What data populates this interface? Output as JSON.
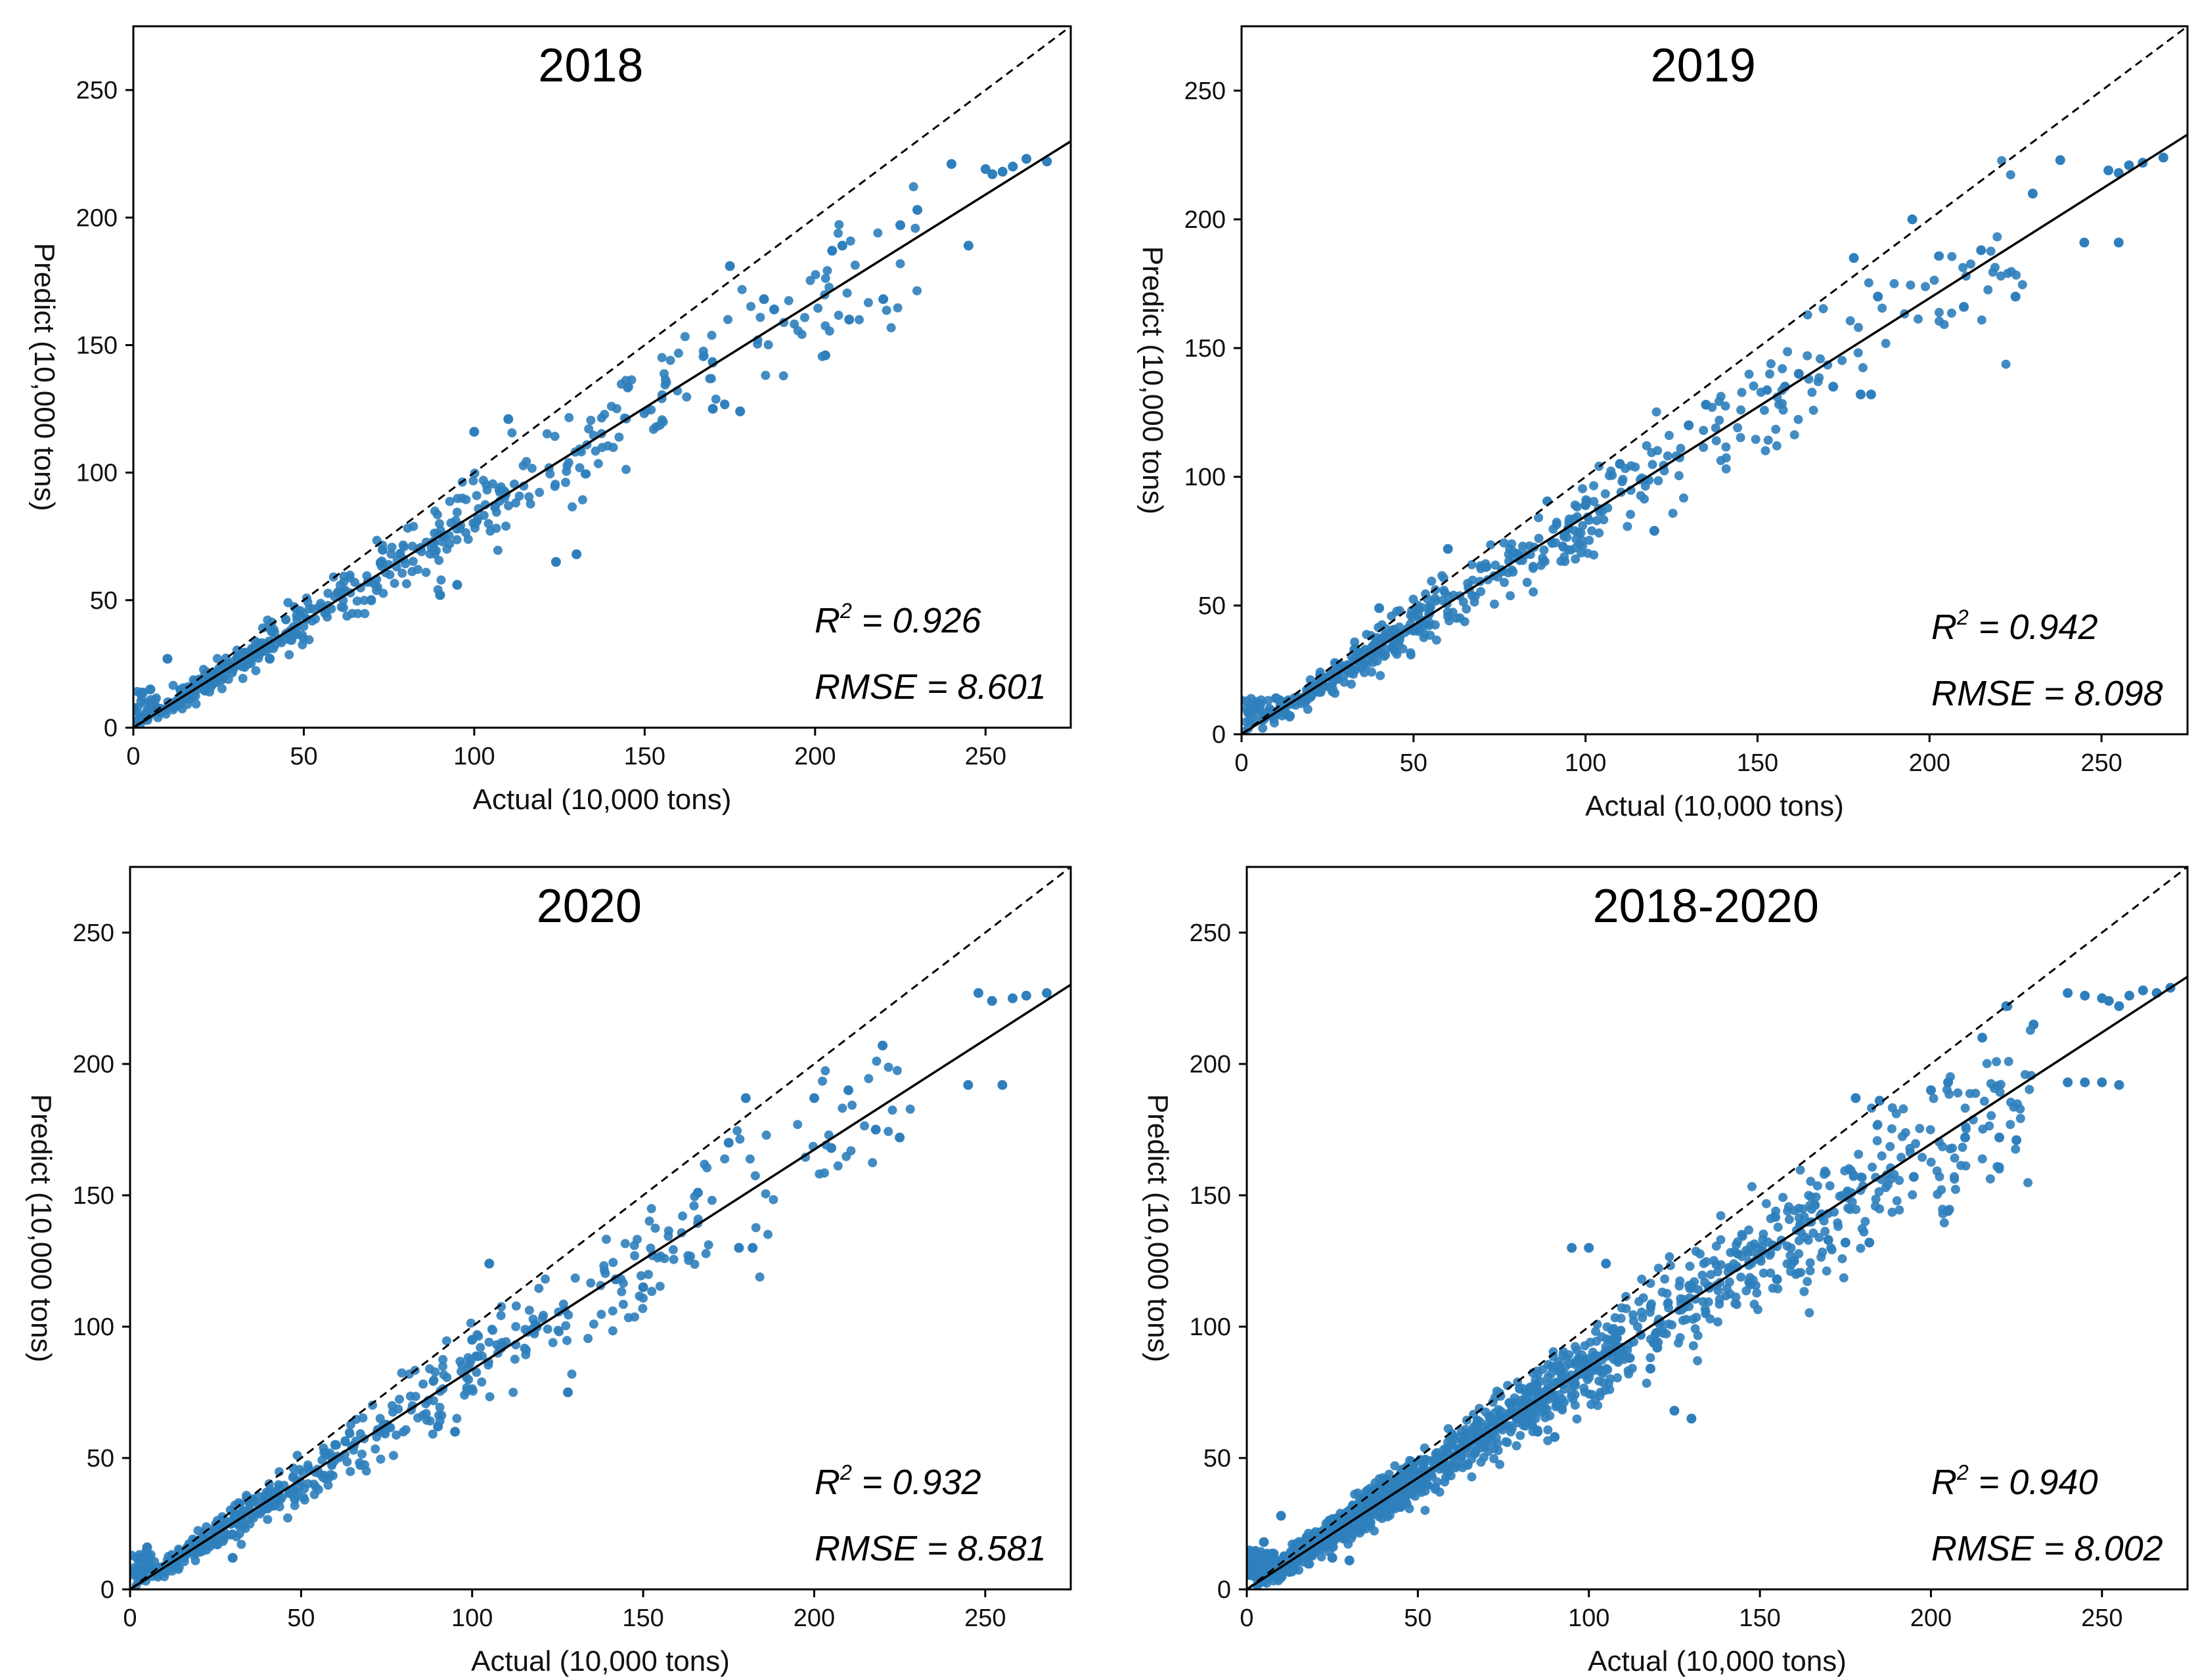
{
  "chart_data": [
    {
      "type": "scatter",
      "title": "2018",
      "xlabel": "Actual (10,000 tons)",
      "ylabel": "Predict (10,000 tons)",
      "xlim": [
        0,
        275
      ],
      "ylim": [
        0,
        275
      ],
      "xticks": [
        "0",
        "50",
        "100",
        "150",
        "200",
        "250"
      ],
      "yticks": [
        "0",
        "50",
        "100",
        "150",
        "200",
        "250"
      ],
      "r2_label": "R",
      "r2_sup": "2",
      "r2_text": " = 0.926",
      "rmse_text": "RMSE = 8.601",
      "fit_line": {
        "intercept": 0,
        "slope": 0.836
      },
      "identity_line": {
        "intercept": 0,
        "slope": 1
      },
      "n_points": 520,
      "seed": 11,
      "highlight_points": [
        [
          240,
          221
        ],
        [
          245,
          189
        ],
        [
          250,
          219
        ],
        [
          252,
          217
        ],
        [
          255,
          218
        ],
        [
          258,
          220
        ],
        [
          262,
          223
        ],
        [
          268,
          222
        ],
        [
          230,
          203
        ],
        [
          225,
          197
        ],
        [
          208,
          189
        ],
        [
          205,
          187
        ],
        [
          220,
          168
        ],
        [
          210,
          160
        ],
        [
          185,
          168
        ],
        [
          188,
          164
        ],
        [
          175,
          181
        ],
        [
          203,
          146
        ],
        [
          124,
          65
        ],
        [
          130,
          68
        ],
        [
          90,
          52
        ],
        [
          95,
          56
        ],
        [
          170,
          125
        ],
        [
          178,
          124
        ],
        [
          100,
          116
        ],
        [
          110,
          121
        ],
        [
          60,
          53
        ],
        [
          40,
          27
        ],
        [
          10,
          27
        ],
        [
          5,
          15
        ]
      ]
    },
    {
      "type": "scatter",
      "title": "2019",
      "xlabel": "Actual (10,000 tons)",
      "ylabel": "Predict (10,000 tons)",
      "xlim": [
        0,
        275
      ],
      "ylim": [
        0,
        275
      ],
      "xticks": [
        "0",
        "50",
        "100",
        "150",
        "200",
        "250"
      ],
      "yticks": [
        "0",
        "50",
        "100",
        "150",
        "200",
        "250"
      ],
      "r2_label": "R",
      "r2_sup": "2",
      "r2_text": " = 0.942",
      "rmse_text": "RMSE = 8.098",
      "fit_line": {
        "intercept": 0,
        "slope": 0.847
      },
      "identity_line": {
        "intercept": 0,
        "slope": 1
      },
      "n_points": 520,
      "seed": 23,
      "highlight_points": [
        [
          238,
          223
        ],
        [
          245,
          191
        ],
        [
          252,
          219
        ],
        [
          255,
          218
        ],
        [
          258,
          221
        ],
        [
          262,
          222
        ],
        [
          268,
          224
        ],
        [
          255,
          191
        ],
        [
          230,
          210
        ],
        [
          215,
          188
        ],
        [
          225,
          170
        ],
        [
          210,
          166
        ],
        [
          195,
          200
        ],
        [
          185,
          170
        ],
        [
          180,
          132
        ],
        [
          183,
          132
        ],
        [
          172,
          135
        ],
        [
          178,
          185
        ],
        [
          162,
          140
        ],
        [
          158,
          135
        ],
        [
          120,
          79
        ],
        [
          100,
          89
        ],
        [
          95,
          80
        ],
        [
          130,
          120
        ],
        [
          135,
          128
        ],
        [
          110,
          105
        ],
        [
          10,
          14
        ],
        [
          5,
          12
        ],
        [
          60,
          72
        ],
        [
          40,
          49
        ]
      ]
    },
    {
      "type": "scatter",
      "title": "2020",
      "xlabel": "Actual (10,000 tons)",
      "ylabel": "Predict (10,000 tons)",
      "xlim": [
        0,
        275
      ],
      "ylim": [
        0,
        275
      ],
      "xticks": [
        "0",
        "50",
        "100",
        "150",
        "200",
        "250"
      ],
      "yticks": [
        "0",
        "50",
        "100",
        "150",
        "200",
        "250"
      ],
      "r2_label": "R",
      "r2_sup": "2",
      "r2_text": " = 0.932",
      "rmse_text": "RMSE = 8.581",
      "fit_line": {
        "intercept": 0,
        "slope": 0.837
      },
      "identity_line": {
        "intercept": 0,
        "slope": 1
      },
      "n_points": 520,
      "seed": 37,
      "highlight_points": [
        [
          248,
          227
        ],
        [
          252,
          224
        ],
        [
          258,
          225
        ],
        [
          262,
          226
        ],
        [
          268,
          227
        ],
        [
          245,
          192
        ],
        [
          255,
          192
        ],
        [
          220,
          207
        ],
        [
          225,
          172
        ],
        [
          218,
          175
        ],
        [
          210,
          190
        ],
        [
          200,
          187
        ],
        [
          205,
          168
        ],
        [
          180,
          187
        ],
        [
          178,
          130
        ],
        [
          182,
          130
        ],
        [
          175,
          170
        ],
        [
          166,
          151
        ],
        [
          150,
          115
        ],
        [
          142,
          118
        ],
        [
          128,
          75
        ],
        [
          105,
          124
        ],
        [
          100,
          95
        ],
        [
          90,
          62
        ],
        [
          95,
          60
        ],
        [
          60,
          55
        ],
        [
          30,
          12
        ],
        [
          20,
          16
        ],
        [
          5,
          16
        ],
        [
          2,
          12
        ]
      ]
    },
    {
      "type": "scatter",
      "title": "2018-2020",
      "xlabel": "Actual (10,000 tons)",
      "ylabel": "Predict (10,000 tons)",
      "xlim": [
        0,
        275
      ],
      "ylim": [
        0,
        275
      ],
      "xticks": [
        "0",
        "50",
        "100",
        "150",
        "200",
        "250"
      ],
      "yticks": [
        "0",
        "50",
        "100",
        "150",
        "200",
        "250"
      ],
      "r2_label": "R",
      "r2_sup": "2",
      "r2_text": " = 0.940",
      "rmse_text": "RMSE = 8.002",
      "fit_line": {
        "intercept": 0,
        "slope": 0.848
      },
      "identity_line": {
        "intercept": 0,
        "slope": 1
      },
      "n_points": 1500,
      "seed": 53,
      "highlight_points": [
        [
          240,
          227
        ],
        [
          245,
          226
        ],
        [
          250,
          225
        ],
        [
          252,
          224
        ],
        [
          255,
          222
        ],
        [
          258,
          226
        ],
        [
          262,
          228
        ],
        [
          266,
          227
        ],
        [
          270,
          229
        ],
        [
          240,
          193
        ],
        [
          245,
          193
        ],
        [
          250,
          193
        ],
        [
          255,
          192
        ],
        [
          230,
          215
        ],
        [
          222,
          222
        ],
        [
          215,
          210
        ],
        [
          205,
          193
        ],
        [
          200,
          190
        ],
        [
          210,
          172
        ],
        [
          220,
          172
        ],
        [
          225,
          171
        ],
        [
          205,
          144
        ],
        [
          195,
          157
        ],
        [
          185,
          186
        ],
        [
          178,
          187
        ],
        [
          182,
          132
        ],
        [
          175,
          132
        ],
        [
          170,
          133
        ],
        [
          160,
          125
        ],
        [
          155,
          118
        ],
        [
          130,
          65
        ],
        [
          125,
          68
        ],
        [
          120,
          92
        ],
        [
          118,
          84
        ],
        [
          105,
          124
        ],
        [
          100,
          130
        ],
        [
          95,
          130
        ],
        [
          90,
          58
        ],
        [
          85,
          60
        ],
        [
          60,
          55
        ],
        [
          30,
          11
        ],
        [
          25,
          12
        ],
        [
          10,
          28
        ],
        [
          5,
          18
        ],
        [
          2,
          12
        ]
      ]
    }
  ],
  "colors": {
    "point": "#2f7fbd",
    "fit_line": "#000000",
    "identity_line": "#000000",
    "axis": "#000000",
    "background": "#ffffff"
  }
}
